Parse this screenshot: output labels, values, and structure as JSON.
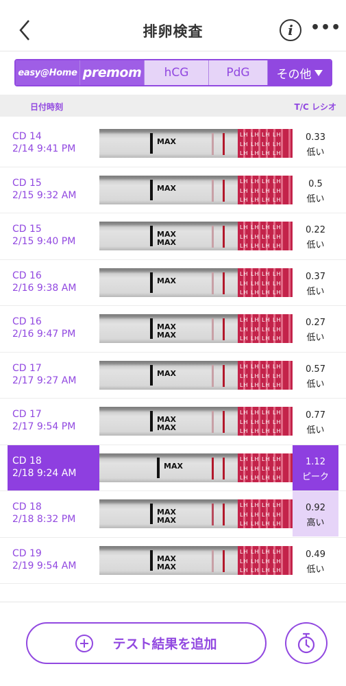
{
  "header": {
    "title": "排卵検査",
    "info_label": "i",
    "more_label": "•••"
  },
  "tabs": [
    {
      "label": "easy@Home"
    },
    {
      "label": "premom"
    },
    {
      "label": "hCG"
    },
    {
      "label": "PdG"
    },
    {
      "label": "その他"
    }
  ],
  "columns": {
    "datetime": "日付時刻",
    "ratio": "T/C レシオ"
  },
  "rows": [
    {
      "cd": "CD 14",
      "time": "2/14 9:41 PM",
      "ratio": "0.33",
      "level": "低い"
    },
    {
      "cd": "CD 15",
      "time": "2/15 9:32 AM",
      "ratio": "0.5",
      "level": "低い"
    },
    {
      "cd": "CD 15",
      "time": "2/15 9:40 PM",
      "ratio": "0.22",
      "level": "低い"
    },
    {
      "cd": "CD 16",
      "time": "2/16 9:38 AM",
      "ratio": "0.37",
      "level": "低い"
    },
    {
      "cd": "CD 16",
      "time": "2/16 9:47 PM",
      "ratio": "0.27",
      "level": "低い"
    },
    {
      "cd": "CD 17",
      "time": "2/17 9:27 AM",
      "ratio": "0.57",
      "level": "低い"
    },
    {
      "cd": "CD 17",
      "time": "2/17 9:54 PM",
      "ratio": "0.77",
      "level": "低い"
    },
    {
      "cd": "CD 18",
      "time": "2/18 9:24 AM",
      "ratio": "1.12",
      "level": "ピーク"
    },
    {
      "cd": "CD 18",
      "time": "2/18 8:32 PM",
      "ratio": "0.92",
      "level": "高い"
    },
    {
      "cd": "CD 19",
      "time": "2/19 9:54 AM",
      "ratio": "0.49",
      "level": "低い"
    }
  ],
  "strip": {
    "max_label": "MAX",
    "lh_label": "LH LH LH LH"
  },
  "footer": {
    "add_label": "テスト結果を追加"
  },
  "colors": {
    "accent": "#9148e0",
    "accent_light": "#e6d4f8"
  }
}
